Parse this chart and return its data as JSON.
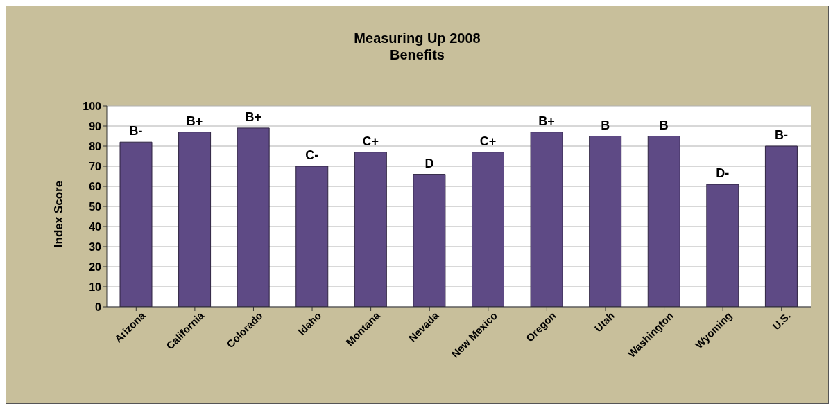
{
  "chart_data": {
    "type": "bar",
    "title": "Measuring Up 2008\nBenefits",
    "ylabel": "Index Score",
    "categories": [
      "Arizona",
      "California",
      "Colorado",
      "Idaho",
      "Montana",
      "Nevada",
      "New Mexico",
      "Oregon",
      "Utah",
      "Washington",
      "Wyoming",
      "U.S."
    ],
    "values": [
      82,
      87,
      89,
      70,
      77,
      66,
      77,
      87,
      85,
      85,
      61,
      80
    ],
    "value_labels": [
      "B-",
      "B+",
      "B+",
      "C-",
      "C+",
      "D",
      "C+",
      "B+",
      "B",
      "B",
      "D-",
      "B-"
    ],
    "color": "#5e4a85",
    "ylim": [
      0,
      100
    ],
    "yticks": [
      0,
      10,
      20,
      30,
      40,
      50,
      60,
      70,
      80,
      90,
      100
    ],
    "grid": "y",
    "legend": false
  }
}
